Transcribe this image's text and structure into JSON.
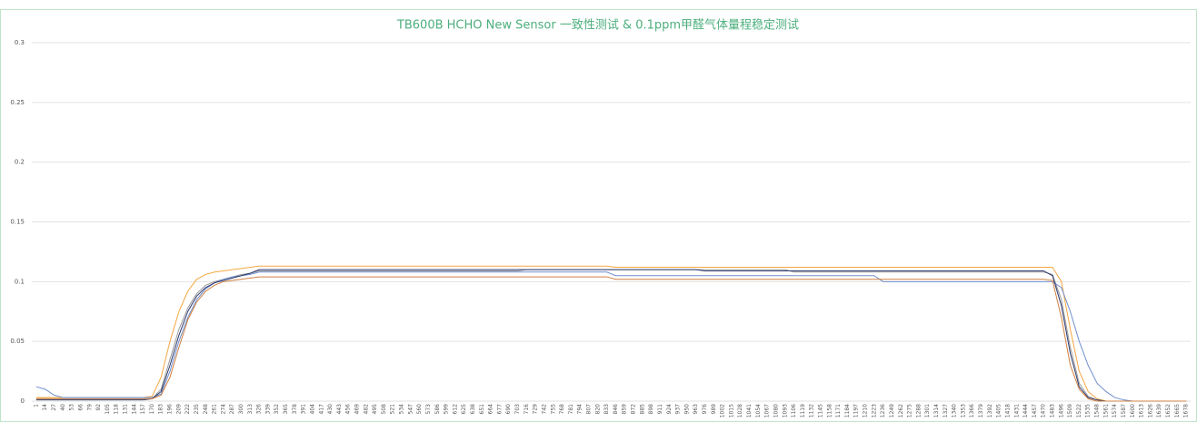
{
  "chart_data": {
    "type": "line",
    "title": "TB600B HCHO New Sensor 一致性测试 & 0.1ppm甲醛气体量程稳定测试",
    "categories": [
      1,
      14,
      27,
      40,
      53,
      66,
      79,
      92,
      105,
      118,
      131,
      144,
      157,
      170,
      183,
      196,
      209,
      222,
      235,
      248,
      261,
      274,
      287,
      300,
      313,
      326,
      339,
      352,
      365,
      378,
      391,
      404,
      417,
      430,
      443,
      456,
      469,
      482,
      495,
      508,
      521,
      534,
      547,
      560,
      573,
      586,
      599,
      612,
      625,
      638,
      651,
      664,
      677,
      690,
      703,
      716,
      729,
      742,
      755,
      768,
      781,
      794,
      807,
      820,
      833,
      846,
      859,
      872,
      885,
      898,
      911,
      924,
      937,
      950,
      963,
      976,
      989,
      1002,
      1015,
      1028,
      1041,
      1054,
      1067,
      1080,
      1093,
      1106,
      1119,
      1132,
      1145,
      1158,
      1171,
      1184,
      1197,
      1210,
      1223,
      1236,
      1249,
      1262,
      1275,
      1288,
      1301,
      1314,
      1327,
      1340,
      1353,
      1366,
      1379,
      1392,
      1405,
      1418,
      1431,
      1444,
      1457,
      1470,
      1483,
      1496,
      1509,
      1522,
      1535,
      1548,
      1561,
      1574,
      1587,
      1600,
      1613,
      1626,
      1639,
      1652,
      1665,
      1678
    ],
    "ylim": [
      0,
      0.3
    ],
    "yticks": [
      0,
      0.05,
      0.1,
      0.15,
      0.2,
      0.25,
      0.3
    ],
    "grid": true,
    "series": [
      {
        "color": "#f4a742",
        "values": [
          0.003,
          0.003,
          0.003,
          0.003,
          0.003,
          0.003,
          0.003,
          0.003,
          0.003,
          0.003,
          0.003,
          0.003,
          0.003,
          0.004,
          0.02,
          0.05,
          0.075,
          0.092,
          0.102,
          0.106,
          0.108,
          0.109,
          0.11,
          0.111,
          0.112,
          0.113,
          0.113,
          0.113,
          0.113,
          0.113,
          0.113,
          0.113,
          0.113,
          0.113,
          0.113,
          0.113,
          0.113,
          0.113,
          0.113,
          0.113,
          0.113,
          0.113,
          0.113,
          0.113,
          0.113,
          0.113,
          0.113,
          0.113,
          0.113,
          0.113,
          0.113,
          0.113,
          0.113,
          0.113,
          0.113,
          0.113,
          0.113,
          0.113,
          0.113,
          0.113,
          0.113,
          0.113,
          0.113,
          0.113,
          0.113,
          0.112,
          0.112,
          0.112,
          0.112,
          0.112,
          0.112,
          0.112,
          0.112,
          0.112,
          0.112,
          0.112,
          0.112,
          0.112,
          0.112,
          0.112,
          0.112,
          0.112,
          0.112,
          0.112,
          0.112,
          0.112,
          0.112,
          0.112,
          0.112,
          0.112,
          0.112,
          0.112,
          0.112,
          0.112,
          0.112,
          0.112,
          0.112,
          0.112,
          0.112,
          0.112,
          0.112,
          0.112,
          0.112,
          0.112,
          0.112,
          0.112,
          0.112,
          0.112,
          0.112,
          0.112,
          0.112,
          0.112,
          0.112,
          0.112,
          0.112,
          0.1,
          0.06,
          0.025,
          0.008,
          0.002,
          0,
          0,
          0,
          0,
          0,
          0,
          0,
          0,
          0,
          0
        ]
      },
      {
        "color": "#9a9a9a",
        "values": [
          0.002,
          0.002,
          0.002,
          0.002,
          0.002,
          0.002,
          0.002,
          0.002,
          0.002,
          0.002,
          0.002,
          0.002,
          0.002,
          0.002,
          0.01,
          0.035,
          0.06,
          0.078,
          0.09,
          0.097,
          0.1,
          0.102,
          0.104,
          0.106,
          0.107,
          0.109,
          0.109,
          0.109,
          0.109,
          0.109,
          0.109,
          0.109,
          0.109,
          0.109,
          0.109,
          0.109,
          0.109,
          0.109,
          0.109,
          0.109,
          0.109,
          0.109,
          0.109,
          0.109,
          0.109,
          0.109,
          0.109,
          0.109,
          0.109,
          0.109,
          0.109,
          0.109,
          0.109,
          0.109,
          0.109,
          0.11,
          0.11,
          0.11,
          0.11,
          0.11,
          0.11,
          0.11,
          0.11,
          0.11,
          0.11,
          0.11,
          0.11,
          0.11,
          0.11,
          0.11,
          0.11,
          0.11,
          0.11,
          0.11,
          0.11,
          0.11,
          0.11,
          0.11,
          0.11,
          0.11,
          0.11,
          0.11,
          0.11,
          0.11,
          0.11,
          0.108,
          0.108,
          0.108,
          0.108,
          0.108,
          0.108,
          0.108,
          0.108,
          0.108,
          0.108,
          0.108,
          0.108,
          0.108,
          0.108,
          0.108,
          0.108,
          0.108,
          0.108,
          0.108,
          0.108,
          0.108,
          0.108,
          0.108,
          0.108,
          0.108,
          0.108,
          0.108,
          0.108,
          0.108,
          0.106,
          0.085,
          0.045,
          0.015,
          0.004,
          0.001,
          0,
          0,
          0,
          0,
          0,
          0,
          0,
          0,
          0,
          0
        ]
      },
      {
        "color": "#6f8fcf",
        "values": [
          0.012,
          0.01,
          0.005,
          0.003,
          0.003,
          0.003,
          0.003,
          0.003,
          0.003,
          0.003,
          0.003,
          0.003,
          0.003,
          0.003,
          0.006,
          0.025,
          0.05,
          0.07,
          0.085,
          0.094,
          0.099,
          0.102,
          0.104,
          0.105,
          0.106,
          0.108,
          0.108,
          0.108,
          0.108,
          0.108,
          0.108,
          0.108,
          0.108,
          0.108,
          0.108,
          0.108,
          0.108,
          0.108,
          0.108,
          0.108,
          0.108,
          0.108,
          0.108,
          0.108,
          0.108,
          0.108,
          0.108,
          0.108,
          0.108,
          0.108,
          0.108,
          0.108,
          0.108,
          0.108,
          0.108,
          0.108,
          0.108,
          0.108,
          0.108,
          0.108,
          0.108,
          0.108,
          0.108,
          0.108,
          0.108,
          0.105,
          0.105,
          0.105,
          0.105,
          0.105,
          0.105,
          0.105,
          0.105,
          0.105,
          0.105,
          0.105,
          0.105,
          0.105,
          0.105,
          0.105,
          0.105,
          0.105,
          0.105,
          0.105,
          0.105,
          0.105,
          0.105,
          0.105,
          0.105,
          0.105,
          0.105,
          0.105,
          0.105,
          0.105,
          0.105,
          0.1,
          0.1,
          0.1,
          0.1,
          0.1,
          0.1,
          0.1,
          0.1,
          0.1,
          0.1,
          0.1,
          0.1,
          0.1,
          0.1,
          0.1,
          0.1,
          0.1,
          0.1,
          0.1,
          0.1,
          0.095,
          0.075,
          0.05,
          0.03,
          0.015,
          0.008,
          0.003,
          0.001,
          0,
          0,
          0,
          0,
          0,
          0,
          0
        ]
      },
      {
        "color": "#2e3a6e",
        "values": [
          0.001,
          0.001,
          0.001,
          0.001,
          0.001,
          0.001,
          0.001,
          0.001,
          0.001,
          0.001,
          0.001,
          0.001,
          0.001,
          0.002,
          0.008,
          0.03,
          0.055,
          0.075,
          0.088,
          0.095,
          0.099,
          0.101,
          0.103,
          0.105,
          0.107,
          0.11,
          0.11,
          0.11,
          0.11,
          0.11,
          0.11,
          0.11,
          0.11,
          0.11,
          0.11,
          0.11,
          0.11,
          0.11,
          0.11,
          0.11,
          0.11,
          0.11,
          0.11,
          0.11,
          0.11,
          0.11,
          0.11,
          0.11,
          0.11,
          0.11,
          0.11,
          0.11,
          0.11,
          0.11,
          0.11,
          0.11,
          0.11,
          0.11,
          0.11,
          0.11,
          0.11,
          0.11,
          0.11,
          0.11,
          0.11,
          0.11,
          0.11,
          0.11,
          0.11,
          0.11,
          0.11,
          0.11,
          0.11,
          0.11,
          0.11,
          0.109,
          0.109,
          0.109,
          0.109,
          0.109,
          0.109,
          0.109,
          0.109,
          0.109,
          0.109,
          0.109,
          0.109,
          0.109,
          0.109,
          0.109,
          0.109,
          0.109,
          0.109,
          0.109,
          0.109,
          0.109,
          0.109,
          0.109,
          0.109,
          0.109,
          0.109,
          0.109,
          0.109,
          0.109,
          0.109,
          0.109,
          0.109,
          0.109,
          0.109,
          0.109,
          0.109,
          0.109,
          0.109,
          0.109,
          0.105,
          0.08,
          0.04,
          0.012,
          0.003,
          0.001,
          0,
          0,
          0,
          0,
          0,
          0,
          0,
          0,
          0,
          0
        ]
      },
      {
        "color": "#d08040",
        "values": [
          0.002,
          0.002,
          0.002,
          0.002,
          0.002,
          0.002,
          0.002,
          0.002,
          0.002,
          0.002,
          0.002,
          0.002,
          0.002,
          0.002,
          0.005,
          0.02,
          0.045,
          0.068,
          0.083,
          0.092,
          0.097,
          0.1,
          0.101,
          0.102,
          0.103,
          0.104,
          0.104,
          0.104,
          0.104,
          0.104,
          0.104,
          0.104,
          0.104,
          0.104,
          0.104,
          0.104,
          0.104,
          0.104,
          0.104,
          0.104,
          0.104,
          0.104,
          0.104,
          0.104,
          0.104,
          0.104,
          0.104,
          0.104,
          0.104,
          0.104,
          0.104,
          0.104,
          0.104,
          0.104,
          0.104,
          0.104,
          0.104,
          0.104,
          0.104,
          0.104,
          0.104,
          0.104,
          0.104,
          0.104,
          0.104,
          0.102,
          0.102,
          0.102,
          0.102,
          0.102,
          0.102,
          0.102,
          0.102,
          0.102,
          0.102,
          0.102,
          0.102,
          0.102,
          0.102,
          0.102,
          0.102,
          0.102,
          0.102,
          0.102,
          0.102,
          0.102,
          0.102,
          0.102,
          0.102,
          0.102,
          0.102,
          0.102,
          0.102,
          0.102,
          0.102,
          0.102,
          0.102,
          0.102,
          0.102,
          0.102,
          0.102,
          0.102,
          0.102,
          0.102,
          0.102,
          0.102,
          0.102,
          0.102,
          0.102,
          0.102,
          0.102,
          0.102,
          0.102,
          0.102,
          0.101,
          0.07,
          0.03,
          0.01,
          0.002,
          0,
          0,
          0,
          0,
          0,
          0,
          0,
          0,
          0,
          0,
          0
        ]
      }
    ]
  }
}
